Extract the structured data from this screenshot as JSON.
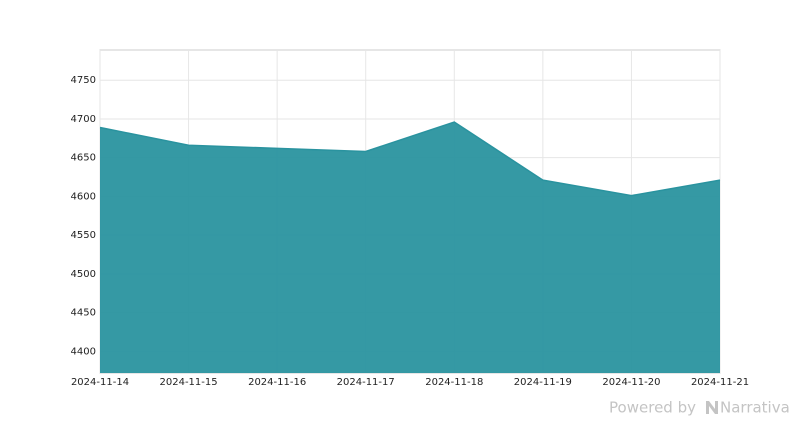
{
  "chart_data": {
    "type": "area",
    "x": [
      "2024-11-14",
      "2024-11-15",
      "2024-11-16",
      "2024-11-17",
      "2024-11-18",
      "2024-11-19",
      "2024-11-20",
      "2024-11-21"
    ],
    "values": [
      4689,
      4666,
      4662,
      4658,
      4696,
      4621,
      4601,
      4621
    ],
    "color": "#2a939f",
    "ylim": [
      4372,
      4789
    ],
    "yticks": [
      4400,
      4450,
      4500,
      4550,
      4600,
      4650,
      4700,
      4750
    ],
    "grid": true
  },
  "footer": {
    "prefix": "Powered by",
    "brand": "Narrativa"
  }
}
